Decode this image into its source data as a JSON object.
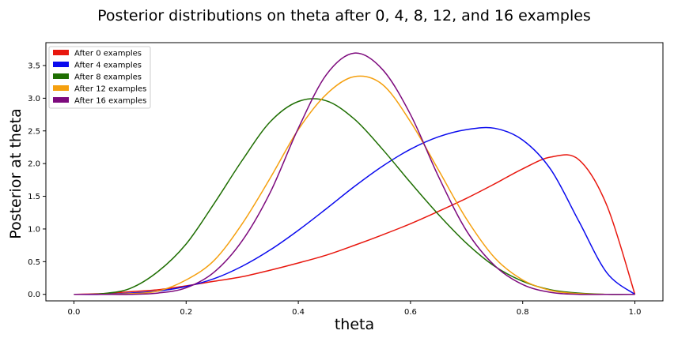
{
  "chart_data": {
    "type": "line",
    "title": "Posterior distributions on theta after 0, 4, 8, 12, and 16 examples",
    "xlabel": "theta",
    "ylabel": "Posterior at theta",
    "xlim": [
      -0.05,
      1.05
    ],
    "ylim": [
      -0.1,
      3.85
    ],
    "xticks": [
      0.0,
      0.2,
      0.4,
      0.6,
      0.8,
      1.0
    ],
    "xtick_labels": [
      "0.0",
      "0.2",
      "0.4",
      "0.6",
      "0.8",
      "1.0"
    ],
    "yticks": [
      0.0,
      0.5,
      1.0,
      1.5,
      2.0,
      2.5,
      3.0,
      3.5
    ],
    "ytick_labels": [
      "0.0",
      "0.5",
      "1.0",
      "1.5",
      "2.0",
      "2.5",
      "3.0",
      "3.5"
    ],
    "grid": false,
    "legend_position": "top-left",
    "series": [
      {
        "name": "After 0 examples",
        "color": "#e8170e",
        "x": [
          0.0,
          0.05,
          0.1,
          0.15,
          0.2,
          0.25,
          0.3,
          0.35,
          0.4,
          0.45,
          0.5,
          0.55,
          0.6,
          0.65,
          0.7,
          0.75,
          0.8,
          0.85,
          0.9,
          0.95,
          1.0
        ],
        "y": [
          0.0,
          0.01,
          0.04,
          0.07,
          0.13,
          0.2,
          0.27,
          0.37,
          0.48,
          0.6,
          0.75,
          0.91,
          1.08,
          1.27,
          1.47,
          1.69,
          1.92,
          2.1,
          2.06,
          1.36,
          0.0
        ]
      },
      {
        "name": "After 4 examples",
        "color": "#0a0aee",
        "x": [
          0.0,
          0.05,
          0.1,
          0.15,
          0.2,
          0.25,
          0.3,
          0.35,
          0.4,
          0.45,
          0.5,
          0.55,
          0.6,
          0.65,
          0.7,
          0.75,
          0.8,
          0.85,
          0.9,
          0.95,
          1.0
        ],
        "y": [
          0.0,
          0.0,
          0.02,
          0.05,
          0.12,
          0.24,
          0.43,
          0.68,
          0.98,
          1.31,
          1.65,
          1.96,
          2.22,
          2.41,
          2.52,
          2.54,
          2.36,
          1.91,
          1.12,
          0.33,
          0.0
        ]
      },
      {
        "name": "After 8 examples",
        "color": "#1e6e02",
        "x": [
          0.0,
          0.05,
          0.1,
          0.15,
          0.2,
          0.25,
          0.3,
          0.35,
          0.4,
          0.45,
          0.5,
          0.55,
          0.6,
          0.65,
          0.7,
          0.75,
          0.8,
          0.85,
          0.9,
          0.95,
          1.0
        ],
        "y": [
          0.0,
          0.01,
          0.09,
          0.35,
          0.77,
          1.39,
          2.05,
          2.64,
          2.95,
          2.96,
          2.68,
          2.22,
          1.71,
          1.22,
          0.78,
          0.43,
          0.2,
          0.07,
          0.02,
          0.0,
          0.0
        ]
      },
      {
        "name": "After 12 examples",
        "color": "#f5a00f",
        "x": [
          0.0,
          0.05,
          0.1,
          0.15,
          0.2,
          0.25,
          0.3,
          0.35,
          0.4,
          0.45,
          0.5,
          0.55,
          0.6,
          0.65,
          0.7,
          0.75,
          0.8,
          0.85,
          0.9,
          0.95,
          1.0
        ],
        "y": [
          0.0,
          0.0,
          0.01,
          0.05,
          0.22,
          0.52,
          1.08,
          1.78,
          2.52,
          3.06,
          3.33,
          3.21,
          2.64,
          1.9,
          1.15,
          0.56,
          0.22,
          0.06,
          0.01,
          0.0,
          0.0
        ]
      },
      {
        "name": "After 16 examples",
        "color": "#7d0a7d",
        "x": [
          0.0,
          0.05,
          0.1,
          0.15,
          0.2,
          0.25,
          0.3,
          0.35,
          0.4,
          0.45,
          0.5,
          0.55,
          0.6,
          0.65,
          0.7,
          0.75,
          0.8,
          0.85,
          0.9,
          0.95,
          1.0
        ],
        "y": [
          0.0,
          0.0,
          0.0,
          0.02,
          0.1,
          0.34,
          0.82,
          1.56,
          2.54,
          3.36,
          3.69,
          3.44,
          2.75,
          1.8,
          0.97,
          0.44,
          0.15,
          0.03,
          0.0,
          0.0,
          0.0
        ]
      }
    ]
  }
}
